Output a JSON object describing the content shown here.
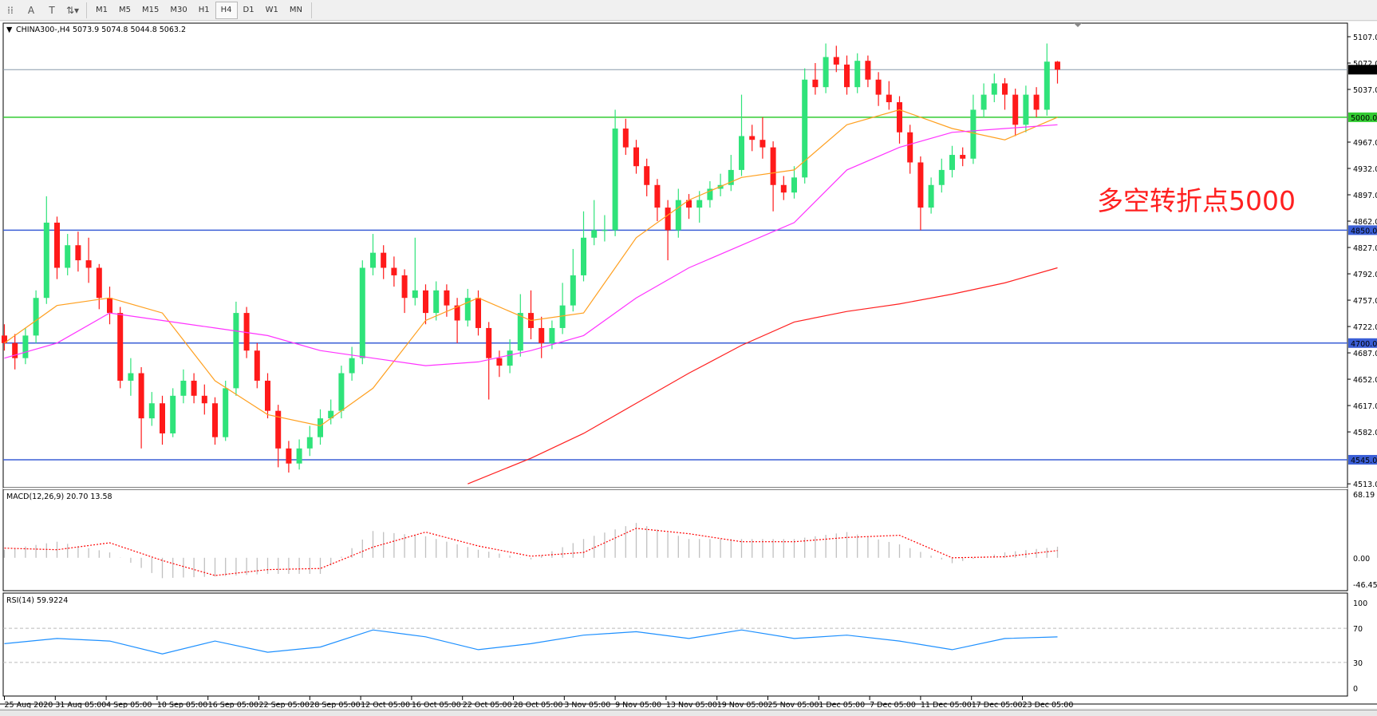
{
  "toolbar": {
    "icons": [
      "grid-icon",
      "text-icon",
      "text-label-icon",
      "arrows-icon"
    ],
    "timeframes": [
      "M1",
      "M5",
      "M15",
      "M30",
      "H1",
      "H4",
      "D1",
      "W1",
      "MN"
    ],
    "active_timeframe": "H4"
  },
  "main": {
    "header": "CHINA300-,H4  5073.9 5074.8 5044.8 5063.2",
    "annotation": "多空转折点5000",
    "price_ticks": [
      "5107.0",
      "5072.0",
      "5037.0",
      "4967.0",
      "4932.0",
      "4897.0",
      "4862.0",
      "4827.0",
      "4792.0",
      "4757.0",
      "4722.0",
      "4687.0",
      "4652.0",
      "4617.0",
      "4582.0",
      "4513.0"
    ],
    "current_price": "5063.2",
    "levels": [
      {
        "value": "5000.0",
        "color": "#33cc33"
      },
      {
        "value": "4850.0",
        "color": "#3b5fd6"
      },
      {
        "value": "4700.0",
        "color": "#3b5fd6"
      },
      {
        "value": "4545.0",
        "color": "#3b5fd6"
      }
    ]
  },
  "macd": {
    "header": "MACD(12,26,9) 20.70 13.58",
    "ticks": [
      "68.19",
      "0.00",
      "-46.45"
    ]
  },
  "rsi": {
    "header": "RSI(14) 59.9224",
    "ticks": [
      "100",
      "70",
      "30",
      "0"
    ]
  },
  "x_labels": [
    "25 Aug 2020",
    "31 Aug 05:00",
    "4 Sep 05:00",
    "10 Sep 05:00",
    "16 Sep 05:00",
    "22 Sep 05:00",
    "28 Sep 05:00",
    "12 Oct 05:00",
    "16 Oct 05:00",
    "22 Oct 05:00",
    "28 Oct 05:00",
    "3 Nov 05:00",
    "9 Nov 05:00",
    "13 Nov 05:00",
    "19 Nov 05:00",
    "25 Nov 05:00",
    "1 Dec 05:00",
    "7 Dec 05:00",
    "11 Dec 05:00",
    "17 Dec 05:00",
    "23 Dec 05:00"
  ],
  "colors": {
    "bull": "#2fe37a",
    "bear": "#ff1a1a",
    "ma_fast": "#ffa020",
    "ma_mid": "#ff33ff",
    "ma_slow": "#ff2020",
    "macd_hist": "#c0c0c0",
    "macd_signal": "#ff0000",
    "rsi": "#1e90ff",
    "current_line": "#8899aa"
  },
  "chart_data": {
    "type": "candlestick",
    "symbol": "CHINA300-",
    "timeframe": "H4",
    "ylim": [
      4513,
      5107
    ],
    "candles_ohlc": [
      [
        4710,
        4725,
        4690,
        4700
      ],
      [
        4700,
        4712,
        4665,
        4680
      ],
      [
        4680,
        4720,
        4672,
        4710
      ],
      [
        4710,
        4770,
        4700,
        4760
      ],
      [
        4760,
        4895,
        4752,
        4860
      ],
      [
        4860,
        4868,
        4785,
        4800
      ],
      [
        4800,
        4845,
        4790,
        4830
      ],
      [
        4830,
        4848,
        4795,
        4810
      ],
      [
        4810,
        4840,
        4780,
        4800
      ],
      [
        4800,
        4805,
        4745,
        4760
      ],
      [
        4760,
        4775,
        4725,
        4740
      ],
      [
        4740,
        4748,
        4640,
        4650
      ],
      [
        4650,
        4680,
        4630,
        4660
      ],
      [
        4660,
        4668,
        4560,
        4600
      ],
      [
        4600,
        4635,
        4590,
        4620
      ],
      [
        4620,
        4630,
        4565,
        4580
      ],
      [
        4580,
        4640,
        4575,
        4630
      ],
      [
        4630,
        4665,
        4620,
        4650
      ],
      [
        4650,
        4660,
        4620,
        4630
      ],
      [
        4630,
        4645,
        4605,
        4620
      ],
      [
        4620,
        4628,
        4565,
        4575
      ],
      [
        4575,
        4650,
        4570,
        4640
      ],
      [
        4640,
        4755,
        4630,
        4740
      ],
      [
        4740,
        4748,
        4680,
        4690
      ],
      [
        4690,
        4700,
        4640,
        4650
      ],
      [
        4650,
        4660,
        4600,
        4610
      ],
      [
        4610,
        4618,
        4535,
        4560
      ],
      [
        4560,
        4570,
        4528,
        4540
      ],
      [
        4540,
        4572,
        4532,
        4560
      ],
      [
        4560,
        4590,
        4550,
        4575
      ],
      [
        4575,
        4612,
        4565,
        4600
      ],
      [
        4600,
        4625,
        4592,
        4610
      ],
      [
        4610,
        4670,
        4600,
        4660
      ],
      [
        4660,
        4695,
        4650,
        4680
      ],
      [
        4680,
        4810,
        4672,
        4800
      ],
      [
        4800,
        4845,
        4790,
        4820
      ],
      [
        4820,
        4830,
        4785,
        4800
      ],
      [
        4800,
        4815,
        4775,
        4790
      ],
      [
        4790,
        4798,
        4740,
        4760
      ],
      [
        4760,
        4840,
        4750,
        4770
      ],
      [
        4770,
        4778,
        4725,
        4740
      ],
      [
        4740,
        4782,
        4730,
        4770
      ],
      [
        4770,
        4778,
        4735,
        4750
      ],
      [
        4750,
        4760,
        4700,
        4730
      ],
      [
        4730,
        4772,
        4722,
        4760
      ],
      [
        4760,
        4770,
        4710,
        4720
      ],
      [
        4720,
        4728,
        4625,
        4680
      ],
      [
        4680,
        4690,
        4655,
        4670
      ],
      [
        4670,
        4705,
        4660,
        4690
      ],
      [
        4690,
        4765,
        4682,
        4740
      ],
      [
        4740,
        4770,
        4705,
        4720
      ],
      [
        4720,
        4735,
        4680,
        4700
      ],
      [
        4700,
        4730,
        4692,
        4720
      ],
      [
        4720,
        4780,
        4712,
        4750
      ],
      [
        4750,
        4825,
        4742,
        4790
      ],
      [
        4790,
        4875,
        4782,
        4840
      ],
      [
        4840,
        4890,
        4830,
        4850
      ],
      [
        4850,
        4870,
        4835,
        4850
      ],
      [
        4850,
        5010,
        4842,
        4985
      ],
      [
        4985,
        4998,
        4950,
        4960
      ],
      [
        4960,
        4970,
        4925,
        4935
      ],
      [
        4935,
        4945,
        4895,
        4910
      ],
      [
        4910,
        4918,
        4862,
        4880
      ],
      [
        4880,
        4890,
        4810,
        4850
      ],
      [
        4850,
        4905,
        4840,
        4890
      ],
      [
        4890,
        4898,
        4865,
        4880
      ],
      [
        4880,
        4902,
        4860,
        4890
      ],
      [
        4890,
        4915,
        4880,
        4905
      ],
      [
        4905,
        4925,
        4895,
        4910
      ],
      [
        4910,
        4950,
        4902,
        4930
      ],
      [
        4930,
        5030,
        4922,
        4975
      ],
      [
        4975,
        4990,
        4955,
        4970
      ],
      [
        4970,
        5000,
        4945,
        4960
      ],
      [
        4960,
        4968,
        4875,
        4910
      ],
      [
        4910,
        4922,
        4890,
        4900
      ],
      [
        4900,
        4935,
        4892,
        4920
      ],
      [
        4920,
        5065,
        4912,
        5050
      ],
      [
        5050,
        5072,
        5030,
        5040
      ],
      [
        5040,
        5098,
        5032,
        5080
      ],
      [
        5080,
        5095,
        5060,
        5070
      ],
      [
        5070,
        5082,
        5030,
        5040
      ],
      [
        5040,
        5085,
        5032,
        5075
      ],
      [
        5075,
        5082,
        5040,
        5050
      ],
      [
        5050,
        5060,
        5015,
        5030
      ],
      [
        5030,
        5048,
        5010,
        5020
      ],
      [
        5020,
        5028,
        4965,
        4980
      ],
      [
        4980,
        4990,
        4925,
        4940
      ],
      [
        4940,
        4948,
        4850,
        4880
      ],
      [
        4880,
        4920,
        4872,
        4910
      ],
      [
        4910,
        4945,
        4900,
        4930
      ],
      [
        4930,
        4962,
        4920,
        4950
      ],
      [
        4950,
        4960,
        4935,
        4945
      ],
      [
        4945,
        5030,
        4938,
        5010
      ],
      [
        5010,
        5045,
        5000,
        5030
      ],
      [
        5030,
        5058,
        5020,
        5045
      ],
      [
        5045,
        5052,
        5010,
        5030
      ],
      [
        5030,
        5038,
        4975,
        4990
      ],
      [
        4990,
        5042,
        4980,
        5030
      ],
      [
        5030,
        5040,
        5000,
        5010
      ],
      [
        5010,
        5098,
        5002,
        5073.9
      ],
      [
        5073.9,
        5074.8,
        5044.8,
        5063.2
      ]
    ],
    "ma_fast_every5": [
      4700,
      4750,
      4760,
      4740,
      4650,
      4605,
      4590,
      4640,
      4730,
      4760,
      4730,
      4740,
      4840,
      4890,
      4920,
      4930,
      4990,
      5010,
      4985,
      4970,
      5000
    ],
    "ma_mid_every5": [
      4680,
      4700,
      4740,
      4730,
      4720,
      4710,
      4690,
      4680,
      4670,
      4675,
      4690,
      4710,
      4760,
      4800,
      4830,
      4860,
      4930,
      4960,
      4980,
      4985,
      4990
    ],
    "ma_slow_points": [
      [
        44,
        4513
      ],
      [
        50,
        4547
      ],
      [
        55,
        4580
      ],
      [
        60,
        4620
      ],
      [
        65,
        4660
      ],
      [
        70,
        4697
      ],
      [
        75,
        4728
      ],
      [
        80,
        4742
      ],
      [
        85,
        4752
      ],
      [
        90,
        4765
      ],
      [
        95,
        4780
      ],
      [
        100,
        4800
      ]
    ],
    "macd": {
      "ylim": [
        -46.45,
        68.19
      ],
      "hist_every5": [
        15,
        30,
        10,
        -38,
        -35,
        -30,
        -30,
        50,
        40,
        15,
        -3,
        35,
        65,
        35,
        35,
        35,
        48,
        25,
        -10,
        10,
        20.7
      ],
      "signal_every5": [
        18,
        15,
        28,
        -5,
        -33,
        -22,
        -20,
        20,
        48,
        22,
        3,
        10,
        55,
        45,
        30,
        30,
        38,
        42,
        0,
        2,
        13.58
      ]
    },
    "rsi": {
      "ylim": [
        0,
        100
      ],
      "levels": [
        70,
        30
      ],
      "values_every5": [
        52,
        58,
        55,
        40,
        55,
        42,
        48,
        68,
        60,
        45,
        52,
        62,
        66,
        58,
        68,
        58,
        62,
        55,
        45,
        58,
        59.92
      ]
    }
  }
}
